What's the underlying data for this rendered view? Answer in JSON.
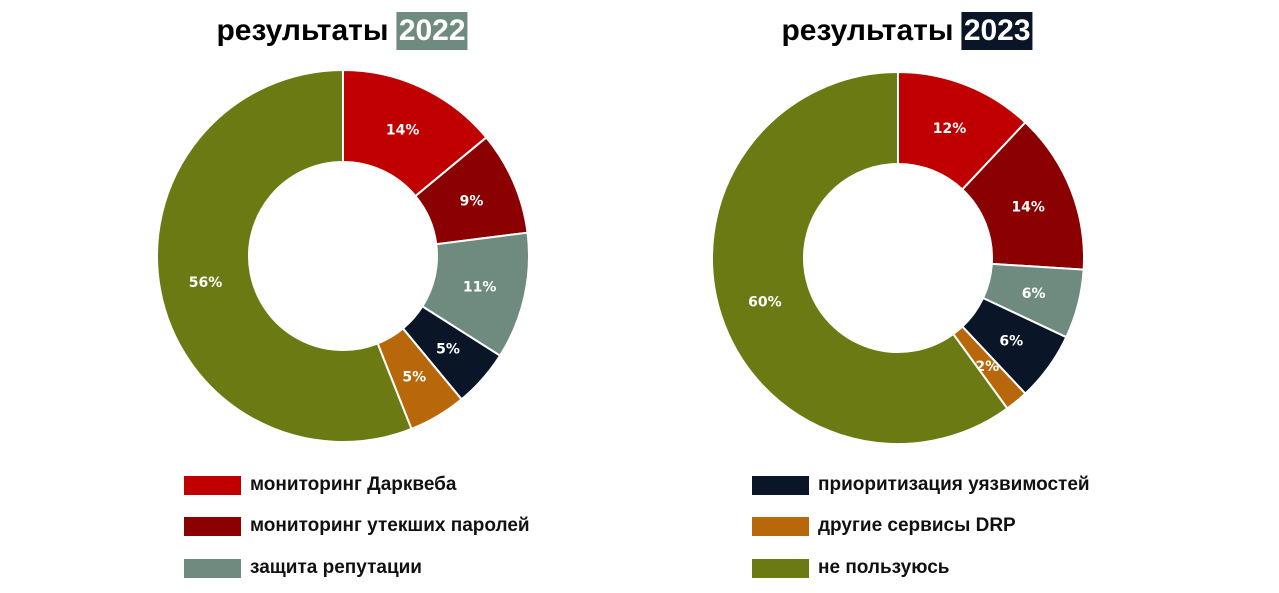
{
  "chart_data": [
    {
      "type": "pie",
      "title_prefix": "результаты",
      "title_year": "2022",
      "year_color": "#6F8B7F",
      "categories": [
        "мониторинг Дарквеба",
        "мониторинг утекших паролей",
        "защита репутации",
        "приоритизация уязвимостей",
        "другие сервисы DRP",
        "не пользуюсь"
      ],
      "values": [
        14,
        9,
        11,
        5,
        5,
        56
      ],
      "labels": [
        "14%",
        "9%",
        "11%",
        "5%",
        "5%",
        "56%"
      ],
      "colors": [
        "#C00000",
        "#8B0000",
        "#6F8B7F",
        "#0A1628",
        "#B8680A",
        "#6B7A12"
      ]
    },
    {
      "type": "pie",
      "title_prefix": "результаты",
      "title_year": "2023",
      "year_color": "#0A1628",
      "categories": [
        "мониторинг Дарквеба",
        "мониторинг утекших паролей",
        "защита репутации",
        "приоритизация уязвимостей",
        "другие сервисы DRP",
        "не пользуюсь"
      ],
      "values": [
        12,
        14,
        6,
        6,
        2,
        60
      ],
      "labels": [
        "12%",
        "14%",
        "6%",
        "6%",
        "2%",
        "60%"
      ],
      "colors": [
        "#C00000",
        "#8B0000",
        "#6F8B7F",
        "#0A1628",
        "#B8680A",
        "#6B7A12"
      ]
    }
  ],
  "legend": [
    {
      "label": "мониторинг Дарквеба",
      "color": "#C00000"
    },
    {
      "label": "мониторинг утекших паролей",
      "color": "#8B0000"
    },
    {
      "label": "защита репутации",
      "color": "#6F8B7F"
    },
    {
      "label": "приоритизация уязвимостей",
      "color": "#0A1628"
    },
    {
      "label": "другие сервисы DRP",
      "color": "#B8680A"
    },
    {
      "label": "не пользуюсь",
      "color": "#6B7A12"
    }
  ]
}
